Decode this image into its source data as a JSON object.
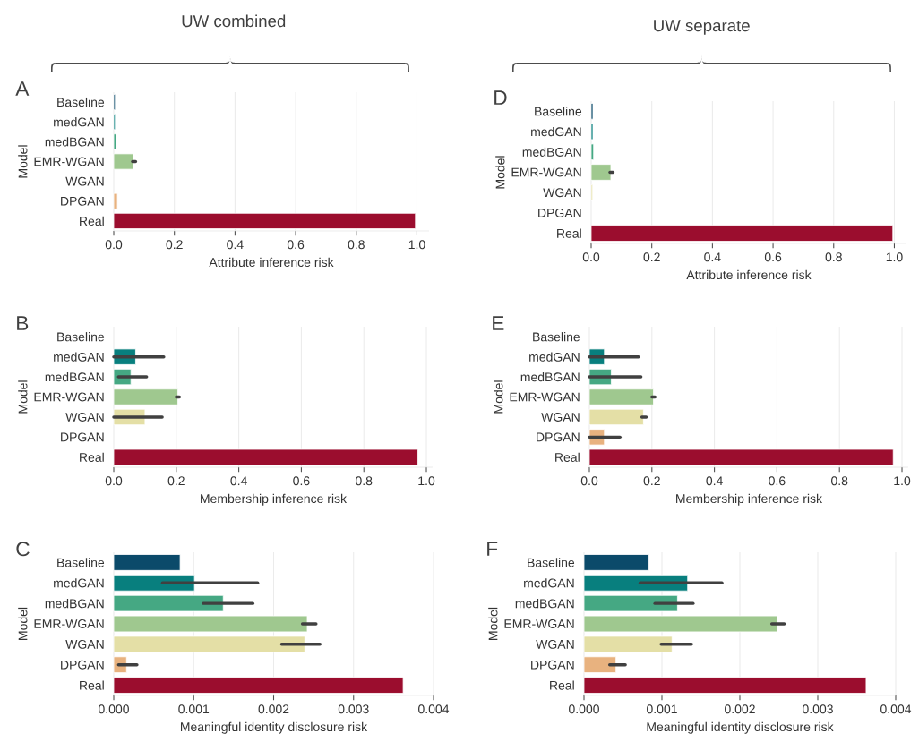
{
  "chart_data": [
    {
      "type": "bar",
      "orientation": "horizontal",
      "title": "A",
      "xlabel": "Attribute inference risk",
      "ylabel": "Model",
      "annotations": [
        "UW combined"
      ],
      "grid": "x",
      "categories": [
        "Baseline",
        "medGAN",
        "medBGAN",
        "EMR-WGAN",
        "WGAN",
        "DPGAN",
        "Real"
      ],
      "values": [
        0.005,
        0.005,
        0.008,
        0.065,
        null,
        0.012,
        0.995
      ],
      "errors": [
        null,
        null,
        null,
        [
          0.062,
          0.072
        ],
        null,
        null,
        null
      ],
      "colors": [
        "#0b4a6a",
        "#087f7e",
        "#45a883",
        "#9fc88f",
        "#e4dfa6",
        "#e8b27f",
        "#9b0d2e"
      ],
      "xlim": [
        0,
        1.04
      ],
      "xticks": [
        {
          "value": 0,
          "label": "0.0"
        },
        0.2,
        0.4,
        0.6,
        0.8,
        {
          "value": 1,
          "label": "1.0"
        }
      ]
    },
    {
      "type": "bar",
      "orientation": "horizontal",
      "title": "D",
      "xlabel": "Attribute inference risk",
      "ylabel": "Model",
      "annotations": [
        "UW separate"
      ],
      "grid": "x",
      "categories": [
        "Baseline",
        "medGAN",
        "medBGAN",
        "EMR-WGAN",
        "WGAN",
        "DPGAN",
        "Real"
      ],
      "values": [
        0.006,
        0.006,
        0.008,
        0.065,
        0.005,
        null,
        0.995
      ],
      "errors": [
        null,
        null,
        null,
        [
          0.062,
          0.072
        ],
        null,
        null,
        null
      ],
      "colors": [
        "#0b4a6a",
        "#087f7e",
        "#45a883",
        "#9fc88f",
        "#e4dfa6",
        "#e8b27f",
        "#9b0d2e"
      ],
      "xlim": [
        0,
        1.04
      ],
      "xticks": [
        {
          "value": 0,
          "label": "0.0"
        },
        0.2,
        0.4,
        0.6,
        0.8,
        {
          "value": 1,
          "label": "1.0"
        }
      ]
    },
    {
      "type": "bar",
      "orientation": "horizontal",
      "title": "B",
      "xlabel": "Membership inference risk",
      "ylabel": "Model",
      "grid": "x",
      "categories": [
        "Baseline",
        "medGAN",
        "medBGAN",
        "EMR-WGAN",
        "WGAN",
        "DPGAN",
        "Real"
      ],
      "values": [
        null,
        0.07,
        0.055,
        0.205,
        0.1,
        null,
        0.972
      ],
      "errors": [
        null,
        [
          0,
          0.16
        ],
        [
          0.015,
          0.105
        ],
        [
          0.2,
          0.21
        ],
        [
          0,
          0.155
        ],
        null,
        null
      ],
      "colors": [
        "#0b4a6a",
        "#087f7e",
        "#45a883",
        "#9fc88f",
        "#e4dfa6",
        "#e8b27f",
        "#9b0d2e"
      ],
      "xlim": [
        0,
        1.02
      ],
      "xticks": [
        {
          "value": 0,
          "label": "0.0"
        },
        0.2,
        0.4,
        0.6,
        0.8,
        {
          "value": 1,
          "label": "1.0"
        }
      ]
    },
    {
      "type": "bar",
      "orientation": "horizontal",
      "title": "E",
      "xlabel": "Membership inference risk",
      "ylabel": "Model",
      "grid": "x",
      "categories": [
        "Baseline",
        "medGAN",
        "medBGAN",
        "EMR-WGAN",
        "WGAN",
        "DPGAN",
        "Real"
      ],
      "values": [
        null,
        0.048,
        0.07,
        0.205,
        0.173,
        0.048,
        0.972
      ],
      "errors": [
        null,
        [
          0,
          0.157
        ],
        [
          0,
          0.165
        ],
        [
          0.2,
          0.21
        ],
        [
          0.168,
          0.182
        ],
        [
          0,
          0.098
        ],
        null
      ],
      "colors": [
        "#0b4a6a",
        "#087f7e",
        "#45a883",
        "#9fc88f",
        "#e4dfa6",
        "#e8b27f",
        "#9b0d2e"
      ],
      "xlim": [
        0,
        1.02
      ],
      "xticks": [
        {
          "value": 0,
          "label": "0.0"
        },
        0.2,
        0.4,
        0.6,
        0.8,
        {
          "value": 1,
          "label": "1.0"
        }
      ]
    },
    {
      "type": "bar",
      "orientation": "horizontal",
      "title": "C",
      "xlabel": "Meaningful identity disclosure risk",
      "ylabel": "Model",
      "grid": "x",
      "categories": [
        "Baseline",
        "medGAN",
        "medBGAN",
        "EMR-WGAN",
        "WGAN",
        "DPGAN",
        "Real"
      ],
      "values": [
        0.00083,
        0.00101,
        0.00137,
        0.00242,
        0.00239,
        0.00016,
        0.00362
      ],
      "errors": [
        null,
        [
          0.00061,
          0.0018
        ],
        [
          0.00112,
          0.00174
        ],
        [
          0.00236,
          0.00253
        ],
        [
          0.0021,
          0.00258
        ],
        [
          6e-05,
          0.00029
        ],
        null
      ],
      "colors": [
        "#0b4a6a",
        "#087f7e",
        "#45a883",
        "#9fc88f",
        "#e4dfa6",
        "#e8b27f",
        "#9b0d2e"
      ],
      "xlim": [
        0,
        0.004
      ],
      "xticks": [
        {
          "value": 0,
          "label": "0.000"
        },
        {
          "value": 0.001,
          "label": "0.001"
        },
        {
          "value": 0.002,
          "label": "0.002"
        },
        {
          "value": 0.003,
          "label": "0.003"
        },
        {
          "value": 0.004,
          "label": "0.004"
        }
      ]
    },
    {
      "type": "bar",
      "orientation": "horizontal",
      "title": "F",
      "xlabel": "Meaningful identity disclosure risk",
      "ylabel": "Model",
      "grid": "x",
      "categories": [
        "Baseline",
        "medGAN",
        "medBGAN",
        "EMR-WGAN",
        "WGAN",
        "DPGAN",
        "Real"
      ],
      "values": [
        0.00083,
        0.00133,
        0.0012,
        0.00248,
        0.00113,
        0.00041,
        0.00362
      ],
      "errors": [
        null,
        [
          0.00072,
          0.00177
        ],
        [
          0.00091,
          0.0014
        ],
        [
          0.00241,
          0.00257
        ],
        [
          0.00099,
          0.00138
        ],
        [
          0.00033,
          0.00053
        ],
        null
      ],
      "colors": [
        "#0b4a6a",
        "#087f7e",
        "#45a883",
        "#9fc88f",
        "#e4dfa6",
        "#e8b27f",
        "#9b0d2e"
      ],
      "xlim": [
        0,
        0.004
      ],
      "xticks": [
        {
          "value": 0,
          "label": "0.000"
        },
        {
          "value": 0.001,
          "label": "0.001"
        },
        {
          "value": 0.002,
          "label": "0.002"
        },
        {
          "value": 0.003,
          "label": "0.003"
        },
        {
          "value": 0.004,
          "label": "0.004"
        }
      ]
    }
  ]
}
